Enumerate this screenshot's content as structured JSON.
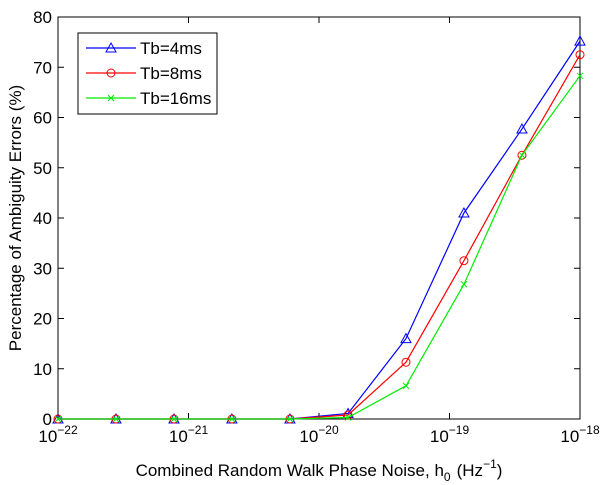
{
  "chart_data": {
    "type": "line",
    "xlabel": {
      "text": "Combined Random Walk Phase Noise, h",
      "sub": "0",
      "unit": "(Hz",
      "sup": "−1",
      "close": ")"
    },
    "ylabel": "Percentage of Ambiguity Errors (%)",
    "x": [
      1e-22,
      2.78e-22,
      7.74e-22,
      2.15e-21,
      5.99e-21,
      1.67e-20,
      4.64e-20,
      1.29e-19,
      3.59e-19,
      1e-18
    ],
    "series": [
      {
        "name": "Tb=4ms",
        "color": "#0000ff",
        "marker": "triangle",
        "values": [
          0,
          0,
          0,
          0,
          0,
          1.1,
          16,
          41,
          57.7,
          75.2
        ]
      },
      {
        "name": "Tb=8ms",
        "color": "#ff0000",
        "marker": "circle",
        "values": [
          0,
          0,
          0,
          0,
          0,
          0.8,
          11.3,
          31.5,
          52.5,
          72.5
        ]
      },
      {
        "name": "Tb=16ms",
        "color": "#00ee00",
        "marker": "x",
        "values": [
          0,
          0,
          0,
          0,
          0,
          0.3,
          6.6,
          26.8,
          52.5,
          68.3
        ]
      }
    ],
    "xscale": "log",
    "xlim": [
      1e-22,
      1e-18
    ],
    "xticks": [
      {
        "value": 1e-22,
        "label": "10",
        "exponent": "−22"
      },
      {
        "value": 1e-21,
        "label": "10",
        "exponent": "−21"
      },
      {
        "value": 1e-20,
        "label": "10",
        "exponent": "−20"
      },
      {
        "value": 1e-19,
        "label": "10",
        "exponent": "−19"
      },
      {
        "value": 1e-18,
        "label": "10",
        "exponent": "−18"
      }
    ],
    "ylim": [
      0,
      80
    ],
    "yticks": [
      0,
      10,
      20,
      30,
      40,
      50,
      60,
      70,
      80
    ],
    "grid": false,
    "legend": "upper-left"
  }
}
